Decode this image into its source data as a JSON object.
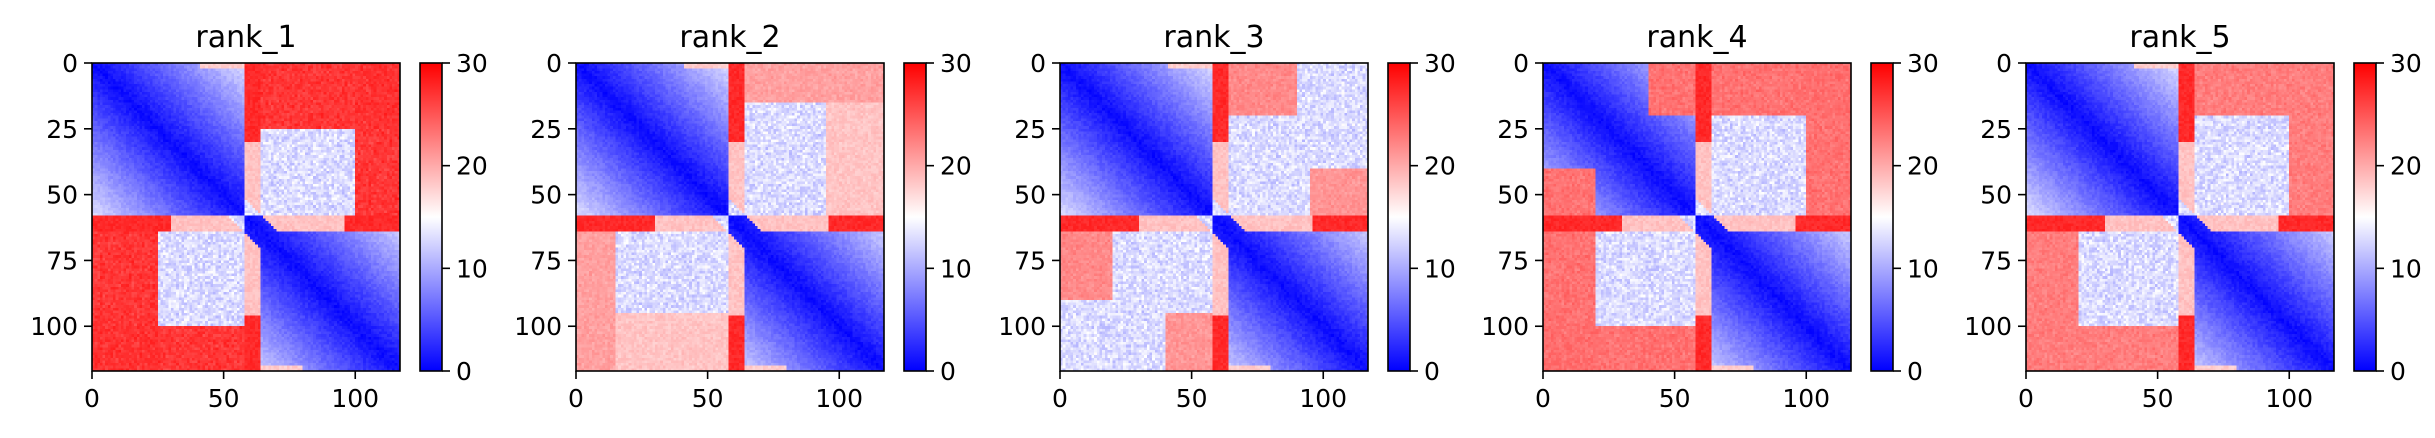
{
  "chart_data": [
    {
      "type": "heatmap",
      "title": "rank_1",
      "xlabel": "",
      "ylabel": "",
      "xlim": [
        0,
        117
      ],
      "ylim": [
        117,
        0
      ],
      "xticks": [
        0,
        50,
        100
      ],
      "xtick_labels": [
        "0",
        "50",
        "100"
      ],
      "yticks": [
        0,
        25,
        50,
        75,
        100
      ],
      "ytick_labels": [
        "0",
        "25",
        "50",
        "75",
        "100"
      ],
      "colormap": "bwr",
      "colorbar": {
        "range": [
          0,
          30
        ],
        "ticks": [
          0,
          10,
          20,
          30
        ],
        "tick_labels": [
          "0",
          "10",
          "20",
          "30"
        ]
      },
      "values": {
        "size": 117,
        "blocks": [
          [
            0,
            58
          ],
          [
            58,
            117
          ]
        ],
        "red_rows": [
          [
            58,
            64
          ]
        ],
        "red_regions": [
          [
            0,
            58,
            100,
            117,
            0.85
          ],
          [
            58,
            117,
            0,
            25,
            0.85
          ]
        ]
      }
    },
    {
      "type": "heatmap",
      "title": "rank_2",
      "xlabel": "",
      "ylabel": "",
      "xlim": [
        0,
        117
      ],
      "ylim": [
        117,
        0
      ],
      "xticks": [
        0,
        50,
        100
      ],
      "xtick_labels": [
        "0",
        "50",
        "100"
      ],
      "yticks": [
        0,
        25,
        50,
        75,
        100
      ],
      "ytick_labels": [
        "0",
        "25",
        "50",
        "75",
        "100"
      ],
      "colormap": "bwr",
      "colorbar": {
        "range": [
          0,
          30
        ],
        "ticks": [
          0,
          10,
          20,
          30
        ],
        "tick_labels": [
          "0",
          "10",
          "20",
          "30"
        ]
      },
      "values": {
        "size": 117,
        "blocks": [
          [
            0,
            58
          ],
          [
            58,
            117
          ]
        ],
        "red_rows": [
          [
            58,
            64
          ]
        ],
        "red_regions": [
          [
            0,
            58,
            95,
            117,
            0.25
          ],
          [
            58,
            117,
            0,
            15,
            0.4
          ]
        ]
      }
    },
    {
      "type": "heatmap",
      "title": "rank_3",
      "xlabel": "",
      "ylabel": "",
      "xlim": [
        0,
        117
      ],
      "ylim": [
        117,
        0
      ],
      "xticks": [
        0,
        50,
        100
      ],
      "xtick_labels": [
        "0",
        "50",
        "100"
      ],
      "yticks": [
        0,
        25,
        50,
        75,
        100
      ],
      "ytick_labels": [
        "0",
        "25",
        "50",
        "75",
        "100"
      ],
      "colormap": "bwr",
      "colorbar": {
        "range": [
          0,
          30
        ],
        "ticks": [
          0,
          10,
          20,
          30
        ],
        "tick_labels": [
          "0",
          "10",
          "20",
          "30"
        ]
      },
      "values": {
        "size": 117,
        "blocks": [
          [
            0,
            58
          ],
          [
            58,
            117
          ]
        ],
        "red_rows": [
          [
            58,
            64
          ]
        ],
        "red_regions": [
          [
            40,
            58,
            95,
            117,
            0.45
          ],
          [
            58,
            90,
            0,
            20,
            0.5
          ]
        ]
      }
    },
    {
      "type": "heatmap",
      "title": "rank_4",
      "xlabel": "",
      "ylabel": "",
      "xlim": [
        0,
        117
      ],
      "ylim": [
        117,
        0
      ],
      "xticks": [
        0,
        50,
        100
      ],
      "xtick_labels": [
        "0",
        "50",
        "100"
      ],
      "yticks": [
        0,
        25,
        50,
        75,
        100
      ],
      "ytick_labels": [
        "0",
        "25",
        "50",
        "75",
        "100"
      ],
      "colormap": "bwr",
      "colorbar": {
        "range": [
          0,
          30
        ],
        "ticks": [
          0,
          10,
          20,
          30
        ],
        "tick_labels": [
          "0",
          "10",
          "20",
          "30"
        ]
      },
      "values": {
        "size": 117,
        "blocks": [
          [
            0,
            58
          ],
          [
            58,
            117
          ]
        ],
        "red_rows": [
          [
            58,
            64
          ]
        ],
        "red_regions": [
          [
            0,
            58,
            100,
            117,
            0.6
          ],
          [
            40,
            117,
            0,
            20,
            0.6
          ]
        ]
      }
    },
    {
      "type": "heatmap",
      "title": "rank_5",
      "xlabel": "",
      "ylabel": "",
      "xlim": [
        0,
        117
      ],
      "ylim": [
        117,
        0
      ],
      "xticks": [
        0,
        50,
        100
      ],
      "xtick_labels": [
        "0",
        "50",
        "100"
      ],
      "yticks": [
        0,
        25,
        50,
        75,
        100
      ],
      "ytick_labels": [
        "0",
        "25",
        "50",
        "75",
        "100"
      ],
      "colormap": "bwr",
      "colorbar": {
        "range": [
          0,
          30
        ],
        "ticks": [
          0,
          10,
          20,
          30
        ],
        "tick_labels": [
          "0",
          "10",
          "20",
          "30"
        ]
      },
      "values": {
        "size": 117,
        "blocks": [
          [
            0,
            58
          ],
          [
            58,
            117
          ]
        ],
        "red_rows": [
          [
            58,
            64
          ]
        ],
        "red_regions": [
          [
            20,
            58,
            100,
            117,
            0.55
          ],
          [
            58,
            117,
            0,
            20,
            0.55
          ]
        ]
      }
    }
  ]
}
